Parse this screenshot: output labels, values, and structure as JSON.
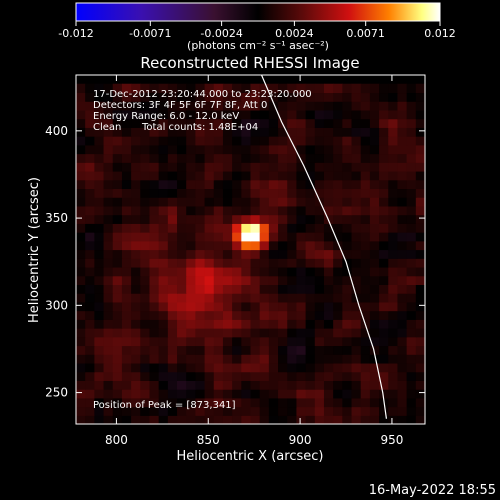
{
  "colorbar": {
    "tick_labels": [
      "-0.012",
      "-0.0071",
      "-0.0024",
      "0.0024",
      "0.0071",
      "0.012"
    ],
    "tick_values": [
      -0.012,
      -0.0071,
      -0.0024,
      0.0024,
      0.0071,
      0.012
    ],
    "range": [
      -0.012,
      0.012
    ],
    "unit_label": "(photons cm⁻² s⁻¹ asec⁻²)",
    "colors": [
      "#0000ff",
      "#3a10b0",
      "#3a1030",
      "#000000",
      "#5a0a0a",
      "#d01010",
      "#ff8000",
      "#ffff80",
      "#ffffff"
    ]
  },
  "chart_data": {
    "type": "heatmap",
    "title": "Reconstructed RHESSI Image",
    "xlabel": "Heliocentric X (arcsec)",
    "ylabel": "Heliocentric Y (arcsec)",
    "xlim": [
      778,
      968
    ],
    "ylim": [
      232,
      432
    ],
    "x_ticks": [
      800,
      850,
      900,
      950
    ],
    "y_ticks": [
      250,
      300,
      350,
      400
    ],
    "x_tick_labels": [
      "800",
      "850",
      "900",
      "950"
    ],
    "y_tick_labels": [
      "250",
      "300",
      "350",
      "400"
    ],
    "peak": {
      "x": 873,
      "y": 341
    },
    "limb_curve": [
      [
        879,
        432
      ],
      [
        890,
        405
      ],
      [
        902,
        380
      ],
      [
        915,
        350
      ],
      [
        925,
        325
      ],
      [
        932,
        300
      ],
      [
        940,
        275
      ],
      [
        945,
        250
      ],
      [
        947,
        235
      ]
    ],
    "annotations": {
      "time_range": "17-Dec-2012 23:20:44.000 to 23:23:20.000",
      "detectors": "Detectors: 3F 4F 5F 6F 7F 8F, Att 0",
      "energy_range": "Energy Range: 6.0 - 12.0 keV",
      "clean_label": "Clean",
      "total_counts": "Total counts: 1.48E+04",
      "peak_position": "Position of Peak = [873,341]"
    }
  },
  "footer": {
    "timestamp": "16-May-2022 18:55"
  }
}
